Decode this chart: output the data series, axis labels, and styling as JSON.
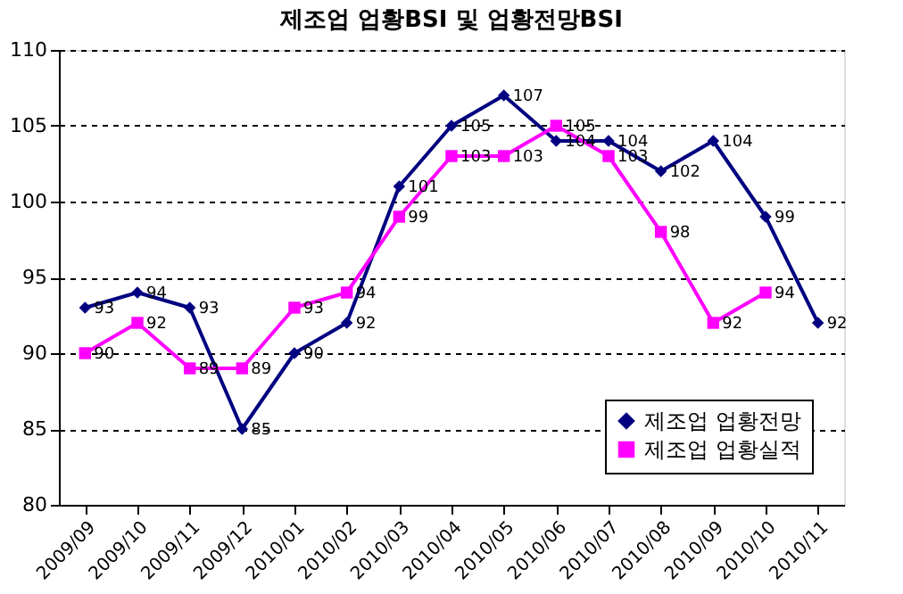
{
  "chart_data": {
    "type": "line",
    "title": "제조업 업황BSI 및 업황전망BSI",
    "categories": [
      "2009/09",
      "2009/10",
      "2009/11",
      "2009/12",
      "2010/01",
      "2010/02",
      "2010/03",
      "2010/04",
      "2010/05",
      "2010/06",
      "2010/07",
      "2010/08",
      "2010/09",
      "2010/10",
      "2010/11"
    ],
    "series": [
      {
        "name": "제조업 업황전망",
        "color": "#000080",
        "marker": "diamond",
        "values": [
          93,
          94,
          93,
          85,
          90,
          92,
          101,
          105,
          107,
          104,
          104,
          102,
          104,
          99,
          92
        ]
      },
      {
        "name": "제조업 업황실적",
        "color": "#ff00ff",
        "marker": "square",
        "values": [
          90,
          92,
          89,
          89,
          93,
          94,
          99,
          103,
          103,
          105,
          103,
          98,
          92,
          94,
          null
        ]
      }
    ],
    "ylim": [
      80,
      110
    ],
    "yticks": [
      80,
      85,
      90,
      95,
      100,
      105,
      110
    ],
    "grid": "y",
    "legend": "bottom right",
    "data_labels": true,
    "line_style": "solid"
  }
}
